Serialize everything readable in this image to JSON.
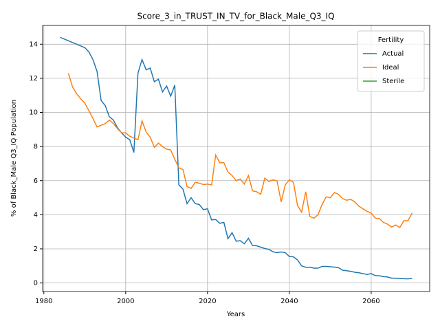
{
  "chart_data": {
    "type": "line",
    "title": "Score_3_in_TRUST_IN_TV_for_Black_Male_Q3_IQ",
    "x_label": "Years",
    "y_label": "% of Black_Male Q3_IQ Population",
    "legend_title": "Fertility",
    "legend_position": "upper right",
    "grid": true,
    "xlim": [
      1979.7,
      2074.3
    ],
    "ylim": [
      -0.5,
      15.1
    ],
    "xticks": [
      1980,
      2000,
      2020,
      2040,
      2060
    ],
    "yticks": [
      0,
      2,
      4,
      6,
      8,
      10,
      12,
      14
    ],
    "x": [
      1984,
      1985,
      1986,
      1987,
      1988,
      1989,
      1990,
      1991,
      1992,
      1993,
      1994,
      1995,
      1996,
      1997,
      1998,
      1999,
      2000,
      2001,
      2002,
      2003,
      2004,
      2005,
      2006,
      2007,
      2008,
      2009,
      2010,
      2011,
      2012,
      2013,
      2014,
      2015,
      2016,
      2017,
      2018,
      2019,
      2020,
      2021,
      2022,
      2023,
      2024,
      2025,
      2026,
      2027,
      2028,
      2029,
      2030,
      2031,
      2032,
      2033,
      2034,
      2035,
      2036,
      2037,
      2038,
      2039,
      2040,
      2041,
      2042,
      2043,
      2044,
      2045,
      2046,
      2047,
      2048,
      2049,
      2050,
      2051,
      2052,
      2053,
      2054,
      2055,
      2056,
      2057,
      2058,
      2059,
      2060,
      2061,
      2062,
      2063,
      2064,
      2065,
      2066,
      2067,
      2068,
      2069,
      2070
    ],
    "series": [
      {
        "name": "Actual",
        "color": "#1f77b4",
        "values": [
          14.4,
          14.3,
          14.2,
          14.1,
          14.0,
          13.9,
          13.8,
          13.55,
          13.1,
          12.4,
          10.7,
          10.4,
          9.75,
          9.55,
          9.1,
          8.8,
          8.55,
          8.4,
          7.65,
          12.3,
          13.1,
          12.5,
          12.6,
          11.8,
          11.95,
          11.2,
          11.55,
          10.95,
          11.6,
          5.75,
          5.5,
          4.65,
          5.0,
          4.65,
          4.6,
          4.3,
          4.35,
          3.7,
          3.72,
          3.5,
          3.55,
          2.6,
          2.95,
          2.45,
          2.48,
          2.3,
          2.62,
          2.2,
          2.18,
          2.1,
          2.02,
          1.97,
          1.83,
          1.78,
          1.82,
          1.78,
          1.55,
          1.53,
          1.35,
          1.0,
          0.92,
          0.92,
          0.87,
          0.87,
          0.97,
          0.97,
          0.95,
          0.93,
          0.9,
          0.75,
          0.72,
          0.68,
          0.63,
          0.6,
          0.55,
          0.5,
          0.55,
          0.43,
          0.42,
          0.37,
          0.35,
          0.28,
          0.28,
          0.26,
          0.25,
          0.24,
          0.27
        ]
      },
      {
        "name": "Ideal",
        "color": "#ff7f0e",
        "values": [
          null,
          null,
          12.3,
          11.5,
          11.1,
          10.8,
          10.55,
          10.1,
          9.65,
          9.15,
          9.25,
          9.35,
          9.55,
          9.35,
          9.05,
          8.8,
          8.8,
          8.6,
          8.5,
          8.4,
          9.5,
          8.85,
          8.55,
          7.95,
          8.2,
          8.0,
          7.85,
          7.8,
          7.25,
          6.75,
          6.65,
          5.65,
          5.55,
          5.9,
          5.85,
          5.77,
          5.8,
          5.75,
          7.5,
          7.05,
          7.05,
          6.5,
          6.3,
          6.0,
          6.1,
          5.8,
          6.3,
          5.4,
          5.35,
          5.2,
          6.15,
          5.95,
          6.05,
          5.98,
          4.75,
          5.75,
          6.05,
          5.9,
          4.55,
          4.15,
          5.35,
          3.9,
          3.8,
          4.0,
          4.6,
          5.05,
          5.0,
          5.3,
          5.2,
          4.95,
          4.85,
          4.9,
          4.75,
          4.5,
          4.35,
          4.2,
          4.1,
          3.8,
          3.78,
          3.55,
          3.45,
          3.28,
          3.4,
          3.25,
          3.65,
          3.65,
          4.1
        ]
      },
      {
        "name": "Sterile",
        "color": "#2ca02c",
        "values": [
          null,
          null,
          null,
          null,
          null,
          null,
          null,
          null,
          null,
          null,
          null,
          null,
          null,
          null,
          null,
          null,
          null,
          null,
          null,
          null,
          null,
          null,
          null,
          null,
          null,
          null,
          null,
          null,
          null,
          null,
          null,
          null,
          null,
          null,
          null,
          null,
          null,
          null,
          null,
          null,
          null,
          null,
          null,
          null,
          null,
          null,
          null,
          null,
          null,
          null,
          null,
          null,
          null,
          null,
          null,
          null,
          null,
          null,
          null,
          null,
          null,
          null,
          null,
          null,
          null,
          null,
          null,
          null,
          null,
          null,
          null,
          null,
          null,
          null,
          null,
          null,
          null,
          null,
          null,
          null,
          null,
          null,
          null,
          null,
          null,
          null,
          null
        ]
      }
    ]
  }
}
